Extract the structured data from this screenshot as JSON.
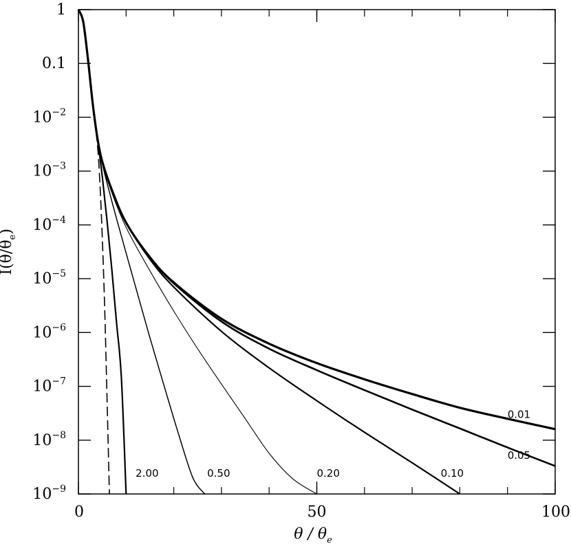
{
  "chart_data": {
    "type": "line",
    "title": "",
    "xlabel": {
      "main": "θ  /  θ",
      "sub": "e"
    },
    "ylabel": {
      "pre": "I(θ/θ",
      "sub": "e",
      "post": ")"
    },
    "xlim": [
      0,
      100
    ],
    "ylim": [
      1e-09,
      1
    ],
    "yscale": "log",
    "grid": false,
    "x_ticks": [
      {
        "value": 0,
        "label": "0"
      },
      {
        "value": 50,
        "label": "50"
      },
      {
        "value": 100,
        "label": "100"
      }
    ],
    "y_ticks": [
      {
        "value": 1,
        "base": "1",
        "exp": ""
      },
      {
        "value": 0.1,
        "base": "0.1",
        "exp": ""
      },
      {
        "value": 0.01,
        "base": "10",
        "exp": "−2"
      },
      {
        "value": 0.001,
        "base": "10",
        "exp": "−3"
      },
      {
        "value": 0.0001,
        "base": "10",
        "exp": "−4"
      },
      {
        "value": 1e-05,
        "base": "10",
        "exp": "−5"
      },
      {
        "value": 1e-06,
        "base": "10",
        "exp": "−6"
      },
      {
        "value": 1e-07,
        "base": "10",
        "exp": "−7"
      },
      {
        "value": 1e-08,
        "base": "10",
        "exp": "−8"
      },
      {
        "value": 1e-09,
        "base": "10",
        "exp": "−9"
      }
    ],
    "series": [
      {
        "name": "0.01",
        "label": "0.01",
        "width": 3.2,
        "dash": "",
        "label_at": [
          90,
          2.6e-08
        ],
        "x": [
          0,
          1,
          2,
          3,
          4,
          5,
          7,
          10,
          15,
          20,
          30,
          40,
          50,
          60,
          70,
          80,
          90,
          100
        ],
        "y": [
          1,
          0.6,
          0.12,
          0.018,
          0.004,
          0.0015,
          0.00045,
          0.00011,
          2.5e-05,
          8.5e-06,
          1.8e-06,
          6.2e-07,
          2.7e-07,
          1.35e-07,
          7.2e-08,
          4e-08,
          2.5e-08,
          1.6e-08
        ]
      },
      {
        "name": "0.05",
        "label": "0.05",
        "width": 2.6,
        "dash": "",
        "label_at": [
          90,
          4.5e-09
        ],
        "x": [
          0,
          1,
          2,
          3,
          4,
          5,
          7,
          10,
          15,
          20,
          30,
          40,
          50,
          60,
          70,
          80,
          90,
          100
        ],
        "y": [
          1,
          0.6,
          0.12,
          0.018,
          0.004,
          0.0015,
          0.00045,
          0.00011,
          2.5e-05,
          8.2e-06,
          1.6e-06,
          5e-07,
          2e-07,
          8.5e-08,
          3.7e-08,
          1.65e-08,
          7.3e-09,
          3.3e-09
        ]
      },
      {
        "name": "0.10",
        "label": "0.10",
        "width": 2.2,
        "dash": "",
        "label_at": [
          76,
          2.1e-09
        ],
        "x": [
          0,
          1,
          2,
          3,
          4,
          5,
          7,
          10,
          15,
          20,
          30,
          40,
          50,
          60,
          70,
          80
        ],
        "y": [
          1,
          0.6,
          0.12,
          0.018,
          0.004,
          0.0015,
          0.00045,
          0.00011,
          2.3e-05,
          7e-06,
          1.05e-06,
          2.2e-07,
          5.4e-08,
          1.4e-08,
          3.8e-09,
          1e-09
        ]
      },
      {
        "name": "0.20",
        "label": "0.20",
        "width": 1.1,
        "dash": "",
        "label_at": [
          50,
          2.1e-09
        ],
        "x": [
          0,
          1,
          2,
          3,
          4,
          5,
          7,
          10,
          15,
          20,
          25,
          30,
          35,
          40,
          45,
          50
        ],
        "y": [
          1,
          0.6,
          0.12,
          0.018,
          0.004,
          0.0014,
          0.0004,
          9e-05,
          1.4e-05,
          2.5e-06,
          5e-07,
          1.1e-07,
          2.5e-08,
          5.7e-09,
          1.9e-09,
          1e-09
        ]
      },
      {
        "name": "0.50",
        "label": "0.50",
        "width": 1.5,
        "dash": "",
        "label_at": [
          27,
          2.1e-09
        ],
        "x": [
          0,
          1,
          2,
          3,
          4,
          5,
          6,
          8,
          10,
          12,
          15,
          18,
          21,
          24,
          26.5
        ],
        "y": [
          1,
          0.6,
          0.12,
          0.018,
          0.004,
          0.0014,
          0.0006,
          0.00013,
          3e-05,
          7e-06,
          8e-07,
          1e-07,
          1.3e-08,
          2e-09,
          1e-09
        ]
      },
      {
        "name": "2.00",
        "label": "2.00",
        "width": 2.2,
        "dash": "",
        "label_at": [
          12,
          2.1e-09
        ],
        "x": [
          0,
          1,
          2,
          3,
          4,
          5,
          6,
          7,
          8,
          9,
          10
        ],
        "y": [
          1,
          0.6,
          0.12,
          0.018,
          0.004,
          0.0008,
          0.00012,
          1.5e-05,
          1.5e-06,
          1.5e-07,
          1e-09
        ]
      },
      {
        "name": "dashed",
        "label": "",
        "width": 1.6,
        "dash": "14,6",
        "label_at": null,
        "x": [
          0,
          1,
          2,
          3,
          4,
          4.5,
          5,
          5.5,
          6,
          6.5
        ],
        "y": [
          1,
          0.6,
          0.12,
          0.018,
          0.003,
          0.0006,
          6e-05,
          3e-06,
          6e-08,
          1e-09
        ]
      }
    ]
  }
}
